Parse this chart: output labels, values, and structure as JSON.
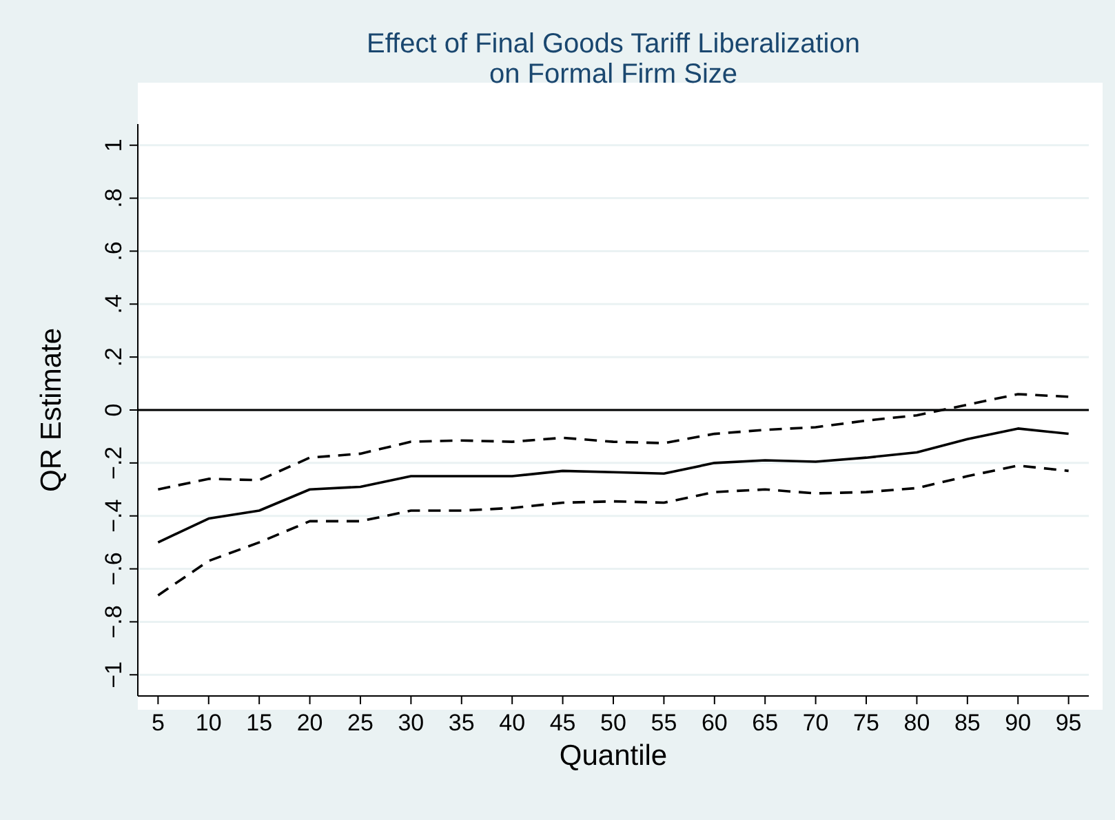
{
  "chart_data": {
    "type": "line",
    "title": "Effect of Final Goods Tariff Liberalization\non Formal Firm Size",
    "xlabel": "Quantile",
    "ylabel": "QR Estimate",
    "x": [
      5,
      10,
      15,
      20,
      25,
      30,
      35,
      40,
      45,
      50,
      55,
      60,
      65,
      70,
      75,
      80,
      85,
      90,
      95
    ],
    "series": [
      {
        "color": "#000000",
        "line_style": "solid",
        "values": [
          -0.5,
          -0.41,
          -0.38,
          -0.3,
          -0.29,
          -0.25,
          -0.25,
          -0.25,
          -0.23,
          -0.235,
          -0.24,
          -0.2,
          -0.19,
          -0.195,
          -0.18,
          -0.16,
          -0.11,
          -0.07,
          -0.09
        ]
      },
      {
        "color": "#000000",
        "line_style": "dashed",
        "values": [
          -0.3,
          -0.26,
          -0.265,
          -0.18,
          -0.165,
          -0.12,
          -0.115,
          -0.12,
          -0.105,
          -0.12,
          -0.125,
          -0.09,
          -0.075,
          -0.065,
          -0.04,
          -0.02,
          0.02,
          0.06,
          0.05
        ]
      },
      {
        "color": "#000000",
        "line_style": "dashed",
        "values": [
          -0.7,
          -0.57,
          -0.5,
          -0.42,
          -0.42,
          -0.38,
          -0.38,
          -0.37,
          -0.35,
          -0.345,
          -0.35,
          -0.31,
          -0.3,
          -0.315,
          -0.31,
          -0.295,
          -0.25,
          -0.21,
          -0.23
        ]
      }
    ],
    "xlim": [
      3,
      97
    ],
    "xticks": [
      5,
      10,
      15,
      20,
      25,
      30,
      35,
      40,
      45,
      50,
      55,
      60,
      65,
      70,
      75,
      80,
      85,
      90,
      95
    ],
    "ylim": [
      -1.08,
      1.08
    ],
    "yticks": [
      {
        "value": -1,
        "label": "−1"
      },
      {
        "value": -0.8,
        "label": "−.8"
      },
      {
        "value": -0.6,
        "label": "−.6"
      },
      {
        "value": -0.4,
        "label": "−.4"
      },
      {
        "value": -0.2,
        "label": "−.2"
      },
      {
        "value": 0,
        "label": "0"
      },
      {
        "value": 0.2,
        "label": ".2"
      },
      {
        "value": 0.4,
        "label": ".4"
      },
      {
        "value": 0.6,
        "label": ".6"
      },
      {
        "value": 0.8,
        "label": ".8"
      },
      {
        "value": 1,
        "label": "1"
      }
    ],
    "grid": "y",
    "ref_lines": [
      {
        "axis": "y",
        "value": 0,
        "color": "#000000"
      }
    ]
  }
}
